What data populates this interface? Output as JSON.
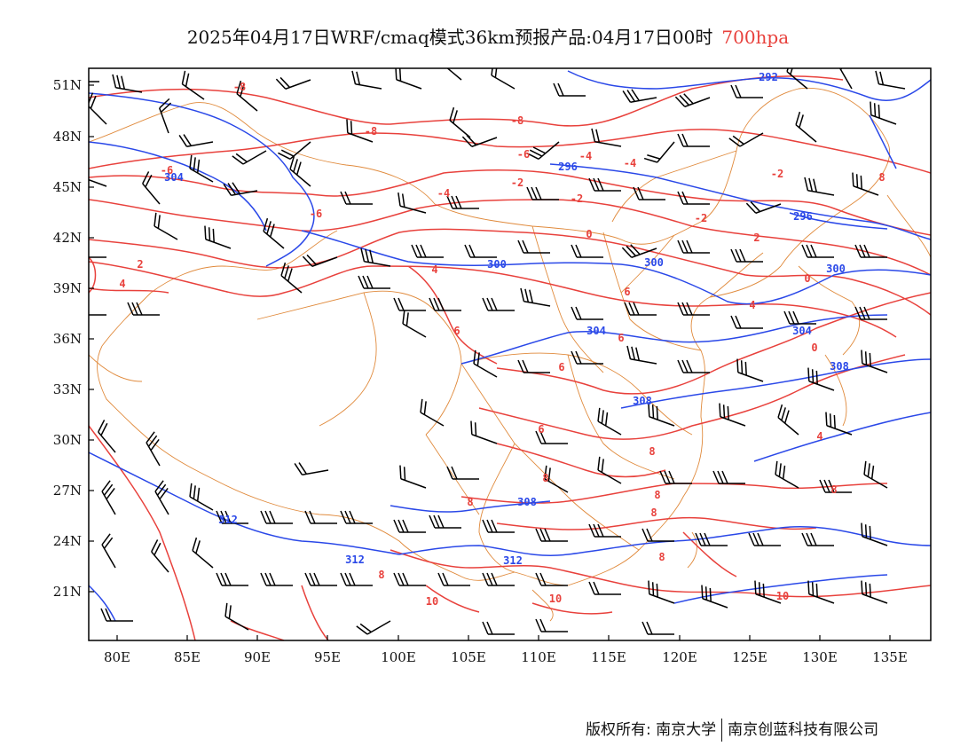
{
  "title": {
    "main": "2025年04月17日WRF/cmaq模式36km预报产品:04月17日00时",
    "level": "700hpa"
  },
  "colors": {
    "temperature": "#e8413c",
    "geopotential": "#2a48e8",
    "boundary": "#e08a3c",
    "wind": "#000000",
    "frame": "#000000"
  },
  "axes": {
    "lat_labels": [
      "51N",
      "48N",
      "45N",
      "42N",
      "39N",
      "36N",
      "33N",
      "30N",
      "27N",
      "24N",
      "21N"
    ],
    "lon_labels": [
      "80E",
      "85E",
      "90E",
      "95E",
      "100E",
      "105E",
      "110E",
      "115E",
      "120E",
      "125E",
      "130E",
      "135E"
    ],
    "lon_range": [
      78,
      138
    ],
    "lat_range": [
      18,
      52
    ]
  },
  "temperature_labels": [
    "-8",
    "-8",
    "-8",
    "-6",
    "-6",
    "-6",
    "-4",
    "-4",
    "-4",
    "-2",
    "-2",
    "-2",
    "-2",
    "0",
    "0",
    "0",
    "2",
    "2",
    "4",
    "4",
    "4",
    "4",
    "6",
    "6",
    "6",
    "6",
    "6",
    "8",
    "8",
    "8",
    "8",
    "8",
    "8",
    "8",
    "8",
    "10",
    "10",
    "10",
    "8"
  ],
  "height_labels": [
    "292",
    "296",
    "296",
    "300",
    "300",
    "300",
    "304",
    "304",
    "304",
    "308",
    "308",
    "308",
    "312",
    "312",
    "312"
  ],
  "footer": {
    "left": "版权所有: 南京大学",
    "right": "南京创蓝科技有限公司"
  }
}
